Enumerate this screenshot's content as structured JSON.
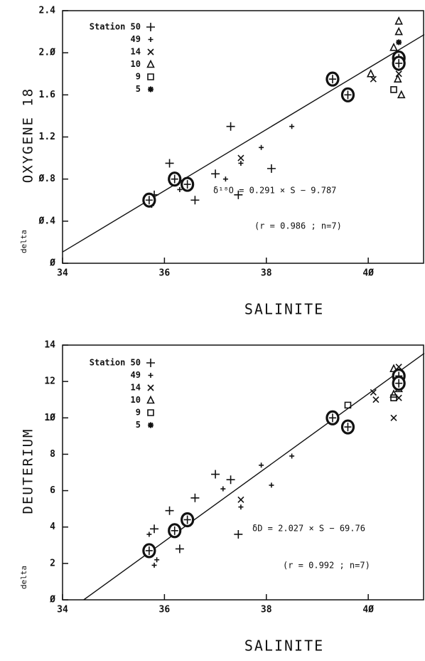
{
  "chart_data": [
    {
      "type": "scatter",
      "xlabel": "SALINITE",
      "ylabel": [
        "delta",
        "OXYGENE 18"
      ],
      "annotations": [
        "δ¹⁸O = 0.291 × S − 9.787",
        "(r = 0.986 ; n=7)"
      ],
      "xlim": [
        34,
        41.1
      ],
      "ylim": [
        0,
        2.4
      ],
      "xticks": [
        34,
        36,
        38,
        {
          "value": 40,
          "label": "4Ø"
        }
      ],
      "yticks": [
        {
          "value": 0,
          "label": "Ø"
        },
        {
          "value": 0.4,
          "label": "Ø.4"
        },
        {
          "value": 0.8,
          "label": "Ø.8"
        },
        1.2,
        1.6,
        {
          "value": 2,
          "label": "2.Ø"
        },
        2.4
      ],
      "fit": {
        "slope": 0.291,
        "intercept": -9.787
      },
      "series": [
        {
          "name": "Station 50",
          "marker": "plus",
          "color": "#111",
          "x": [
            35.8,
            36.1,
            36.6,
            37.0,
            37.3,
            37.45,
            38.1
          ],
          "values": [
            0.65,
            0.95,
            0.6,
            0.85,
            1.3,
            0.65,
            0.9
          ]
        },
        {
          "name": "49",
          "marker": "smallplus",
          "color": "#111",
          "x": [
            35.75,
            36.3,
            37.2,
            37.5,
            37.9,
            38.5,
            40.6
          ],
          "values": [
            0.55,
            0.7,
            0.8,
            0.95,
            1.1,
            1.3,
            1.85
          ]
        },
        {
          "name": "14",
          "marker": "cross",
          "color": "#111",
          "x": [
            37.5,
            40.1,
            40.6
          ],
          "values": [
            1.0,
            1.75,
            1.8
          ]
        },
        {
          "name": "10",
          "marker": "triangle",
          "color": "#111",
          "x": [
            40.05,
            40.5,
            40.6,
            40.6,
            40.65,
            40.58
          ],
          "values": [
            1.8,
            2.05,
            2.3,
            2.2,
            1.6,
            1.75
          ]
        },
        {
          "name": "9",
          "marker": "square",
          "color": "#111",
          "x": [
            39.6,
            40.5
          ],
          "values": [
            1.58,
            1.65
          ]
        },
        {
          "name": "5",
          "marker": "star",
          "color": "#111",
          "x": [
            40.6,
            40.6
          ],
          "values": [
            2.1,
            1.95
          ]
        },
        {
          "marker": "circled",
          "color": "#111",
          "x": [
            35.7,
            36.2,
            36.45,
            39.3,
            39.6,
            40.6,
            40.6
          ],
          "values": [
            0.6,
            0.8,
            0.75,
            1.75,
            1.6,
            1.95,
            1.9
          ]
        }
      ]
    },
    {
      "type": "scatter",
      "xlabel": "SALINITE",
      "ylabel": [
        "delta",
        "DEUTERIUM"
      ],
      "annotations": [
        "δD = 2.027 × S − 69.76",
        "(r = 0.992 ; n=7)"
      ],
      "xlim": [
        34,
        41.1
      ],
      "ylim": [
        0,
        14
      ],
      "xticks": [
        34,
        36,
        38,
        {
          "value": 40,
          "label": "4Ø"
        }
      ],
      "yticks": [
        {
          "value": 0,
          "label": "Ø"
        },
        2,
        4,
        6,
        8,
        {
          "value": 10,
          "label": "1Ø"
        },
        12,
        14
      ],
      "fit": {
        "slope": 2.027,
        "intercept": -69.76
      },
      "series": [
        {
          "name": "Station 50",
          "marker": "plus",
          "color": "#111",
          "x": [
            35.8,
            36.1,
            36.3,
            36.6,
            37.0,
            37.3,
            37.45
          ],
          "values": [
            3.9,
            4.9,
            2.8,
            5.6,
            6.9,
            6.6,
            3.6
          ]
        },
        {
          "name": "49",
          "marker": "smallplus",
          "color": "#111",
          "x": [
            35.7,
            35.8,
            35.85,
            37.15,
            37.5,
            37.9,
            38.1,
            38.5
          ],
          "values": [
            3.6,
            1.9,
            2.2,
            6.1,
            5.1,
            7.4,
            6.3,
            7.9
          ]
        },
        {
          "name": "14",
          "marker": "cross",
          "color": "#111",
          "x": [
            37.5,
            40.1,
            40.15,
            40.5,
            40.6,
            40.6
          ],
          "values": [
            5.5,
            11.4,
            11,
            10,
            12.8,
            11.1
          ]
        },
        {
          "name": "10",
          "marker": "triangle",
          "color": "#111",
          "x": [
            40.5,
            40.5,
            40.6
          ],
          "values": [
            12.7,
            11.3,
            11.6
          ]
        },
        {
          "name": "9",
          "marker": "square",
          "color": "#111",
          "x": [
            39.6,
            40.5
          ],
          "values": [
            10.7,
            11.1
          ]
        },
        {
          "name": "5",
          "marker": "star",
          "color": "#111",
          "x": [
            40.6
          ],
          "values": [
            11.8
          ]
        },
        {
          "marker": "circled",
          "color": "#111",
          "x": [
            35.7,
            36.2,
            36.45,
            39.3,
            39.6,
            40.6,
            40.6
          ],
          "values": [
            2.7,
            3.8,
            4.4,
            10.0,
            9.5,
            12.3,
            11.9
          ]
        }
      ]
    }
  ]
}
